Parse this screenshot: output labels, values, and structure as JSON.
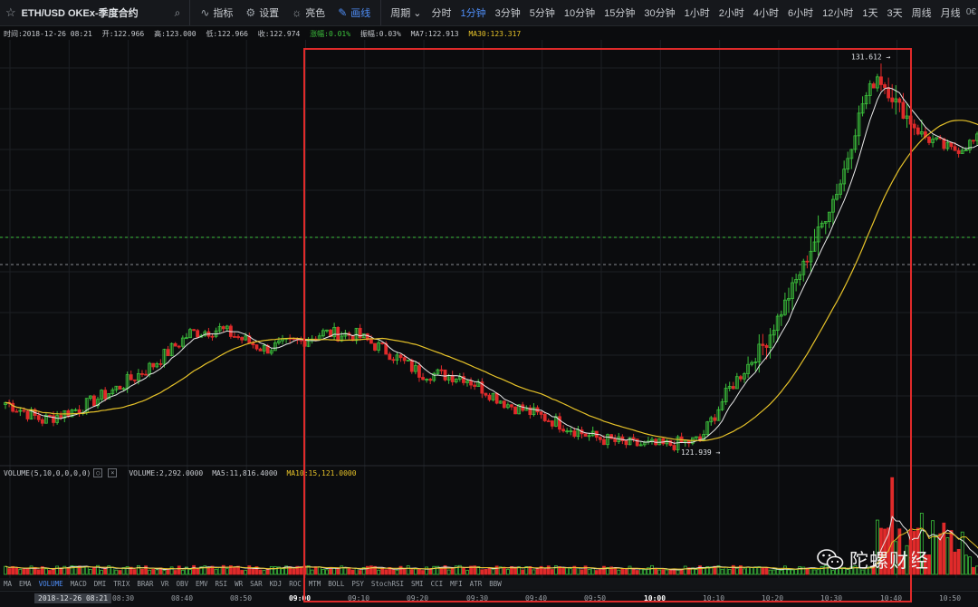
{
  "toolbar": {
    "star_icon": "star-icon",
    "symbol": "ETH/USD OKEx-季度合约",
    "search_icon": "search-icon",
    "buttons": [
      {
        "name": "indicators",
        "icon": "indicator-icon",
        "label": "指标"
      },
      {
        "name": "settings",
        "icon": "gear-icon",
        "label": "设置"
      },
      {
        "name": "theme",
        "icon": "sun-icon",
        "label": "亮色"
      },
      {
        "name": "draw",
        "icon": "pencil-icon",
        "label": "画线",
        "active": true
      }
    ],
    "period_label": "周期 ⌄",
    "timeframes": [
      "分时",
      "1分钟",
      "3分钟",
      "5分钟",
      "10分钟",
      "15分钟",
      "30分钟",
      "1小时",
      "2小时",
      "4小时",
      "6小时",
      "12小时",
      "1天",
      "3天",
      "周线",
      "月线"
    ],
    "active_timeframe": "1分钟",
    "right_text": "0€"
  },
  "info": {
    "time": "时间:2018-12-26 08:21",
    "open": "开:122.966",
    "high": "高:123.000",
    "low": "低:122.966",
    "close": "收:122.974",
    "change": "涨幅:0.01%",
    "amplitude": "振幅:0.03%",
    "ma7": "MA7:122.913",
    "ma30": "MA30:123.317"
  },
  "annotations": {
    "high": "131.612 →",
    "low": "121.939 →"
  },
  "volume_info": {
    "label": "VOLUME(5,10,0,0,0,0)",
    "volume": "VOLUME:2,292.0000",
    "ma5": "MA5:11,816.4000",
    "ma10": "MA10:15,121.0000"
  },
  "indicator_tabs": [
    "MA",
    "EMA",
    "VOLUME",
    "MACD",
    "DMI",
    "TRIX",
    "BRAR",
    "VR",
    "OBV",
    "EMV",
    "RSI",
    "WR",
    "SAR",
    "KDJ",
    "ROC",
    "MTM",
    "BOLL",
    "PSY",
    "StochRSI",
    "SMI",
    "CCI",
    "MFI",
    "ATR",
    "BBW"
  ],
  "active_indicator": "VOLUME",
  "time_axis": {
    "current": "2018-12-26 08:21",
    "ticks": [
      "08:30",
      "08:40",
      "08:50",
      "09:00",
      "09:10",
      "09:20",
      "09:30",
      "09:40",
      "09:50",
      "10:00",
      "10:10",
      "10:20",
      "10:30",
      "10:40",
      "10:50"
    ],
    "bold_ticks": [
      "09:00",
      "10:00"
    ]
  },
  "watermark": {
    "text": "陀螺财经",
    "icon": "wechat-logo-icon"
  },
  "colors": {
    "up": "#3cc23c",
    "down": "#e02a2a",
    "ma7": "#e8e8e8",
    "ma30": "#e6c229",
    "highlight": "#e02a2a",
    "active": "#4f8ef7",
    "background": "#0b0c0e"
  },
  "chart_data": {
    "type": "candlestick",
    "price_range": [
      121.5,
      132.2
    ],
    "high_marker": 131.612,
    "low_marker": 121.939,
    "candles_ohlc_key_points": [
      {
        "x": "08:21",
        "close": 122.974
      },
      {
        "x": "08:50",
        "close": 124.9
      },
      {
        "x": "09:00",
        "close": 124.3
      },
      {
        "x": "09:10",
        "close": 124.7
      },
      {
        "x": "09:30",
        "close": 124.2
      },
      {
        "x": "09:50",
        "close": 122.2
      },
      {
        "x": "10:00",
        "close": 121.95
      },
      {
        "x": "10:10",
        "close": 122.2
      },
      {
        "x": "10:20",
        "close": 124.5
      },
      {
        "x": "10:30",
        "close": 127.5
      },
      {
        "x": "10:40",
        "close": 131.2
      },
      {
        "x": "10:50",
        "close": 129.6
      }
    ]
  }
}
